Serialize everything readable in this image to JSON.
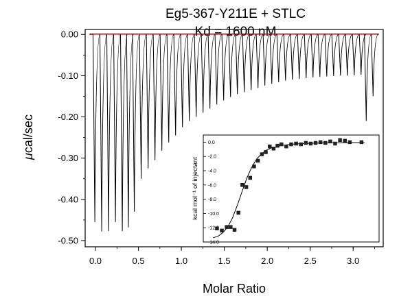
{
  "chart_data": [
    {
      "type": "line",
      "title_line1": "Eg5-367-Y211E + STLC",
      "title_line2": "Kd = 1600 nM",
      "xlabel": "Molar Ratio",
      "ylabel_mu": "μ",
      "ylabel_rest": "cal/sec",
      "xlim": [
        -0.12,
        3.35
      ],
      "ylim": [
        -0.515,
        0.012
      ],
      "xticks": [
        0.0,
        0.5,
        1.0,
        1.5,
        2.0,
        2.5,
        3.0
      ],
      "xtick_labels": [
        "0.0",
        "0.5",
        "1.0",
        "1.5",
        "2.0",
        "2.5",
        "3.0"
      ],
      "yticks": [
        0.0,
        -0.1,
        -0.2,
        -0.3,
        -0.4,
        -0.5
      ],
      "ytick_labels": [
        "0.00",
        "-0.10",
        "-0.20",
        "-0.30",
        "-0.40",
        "-0.50"
      ],
      "grid": false,
      "baseline_color": "#cc0000",
      "trace_color": "#000000",
      "series": [
        {
          "x": [
            -0.02,
            0.06,
            0.14,
            0.22,
            0.3,
            0.37,
            0.44,
            0.52,
            0.6,
            0.68,
            0.76,
            0.84,
            0.92,
            1.0,
            1.08,
            1.16,
            1.24,
            1.32,
            1.4,
            1.48,
            1.56,
            1.64,
            1.72,
            1.8,
            1.88,
            1.96,
            2.04,
            2.12,
            2.2,
            2.28,
            2.36,
            2.44,
            2.52,
            2.6,
            2.68,
            2.76,
            2.84,
            2.92,
            3.0,
            3.08,
            3.14,
            3.22
          ],
          "values": [
            -0.455,
            -0.478,
            -0.477,
            -0.455,
            -0.477,
            -0.468,
            -0.43,
            -0.35,
            -0.325,
            -0.305,
            -0.282,
            -0.262,
            -0.245,
            -0.225,
            -0.21,
            -0.2,
            -0.19,
            -0.18,
            -0.17,
            -0.16,
            -0.152,
            -0.145,
            -0.14,
            -0.135,
            -0.13,
            -0.124,
            -0.12,
            -0.116,
            -0.112,
            -0.11,
            -0.108,
            -0.106,
            -0.104,
            -0.103,
            -0.102,
            -0.101,
            -0.1,
            -0.1,
            -0.099,
            -0.098,
            -0.21,
            -0.15
          ]
        }
      ]
    },
    {
      "type": "scatter",
      "ylabel": "kcal mol⁻¹ of injectant",
      "xlim": [
        1.5,
        3.3
      ],
      "ylim": [
        -14.0,
        1.0
      ],
      "yticks": [
        0.0,
        -2.0,
        -4.0,
        -6.0,
        -8.0,
        -10.0,
        -12.0,
        -14.0
      ],
      "ytick_labels": [
        "0.0",
        "-2.0",
        "-4.0",
        "-6.0",
        "-8.0",
        "-10.0",
        "-12.0",
        "-14.0"
      ],
      "marker": "square",
      "grid": false,
      "series": [
        {
          "x": [
            1.64,
            1.69,
            1.74,
            1.78,
            1.82,
            1.86,
            1.9,
            1.94,
            1.98,
            2.02,
            2.06,
            2.1,
            2.14,
            2.18,
            2.22,
            2.26,
            2.3,
            2.35,
            2.4,
            2.45,
            2.5,
            2.55,
            2.6,
            2.65,
            2.7,
            2.75,
            2.8,
            2.85,
            2.9,
            2.95,
            3.0,
            3.12
          ],
          "values": [
            -12.1,
            -12.4,
            -11.9,
            -11.9,
            -12.3,
            -9.9,
            -6.0,
            -6.3,
            -5.0,
            -3.4,
            -2.6,
            -1.7,
            -1.4,
            -0.6,
            -0.9,
            -0.5,
            -0.3,
            -0.6,
            -0.3,
            -0.2,
            -0.3,
            -0.1,
            -0.2,
            -0.1,
            0.0,
            -0.1,
            0.1,
            -0.2,
            0.3,
            0.2,
            0.0,
            0.0
          ]
        }
      ],
      "fit_curve": {
        "x": [
          1.6,
          1.65,
          1.7,
          1.75,
          1.8,
          1.85,
          1.9,
          1.95,
          2.0,
          2.05,
          2.1,
          2.15,
          2.2,
          2.3,
          2.4,
          2.5,
          2.6,
          2.7,
          2.8,
          2.9,
          3.0,
          3.15
        ],
        "values": [
          -13.4,
          -13.2,
          -12.7,
          -11.9,
          -10.6,
          -8.8,
          -6.8,
          -4.9,
          -3.4,
          -2.3,
          -1.6,
          -1.1,
          -0.8,
          -0.45,
          -0.3,
          -0.2,
          -0.15,
          -0.12,
          -0.1,
          -0.08,
          -0.07,
          -0.06
        ]
      }
    }
  ]
}
